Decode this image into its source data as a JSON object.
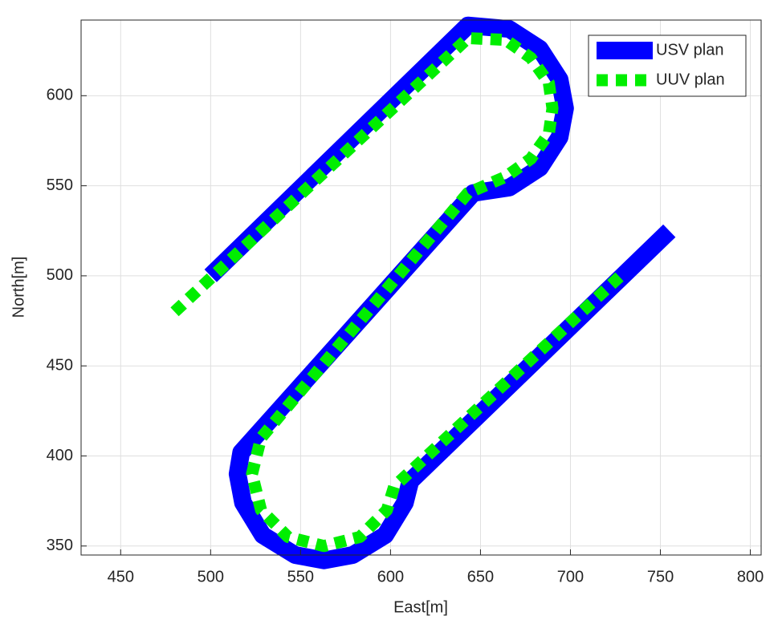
{
  "chart_data": {
    "type": "line",
    "xlabel": "East[m]",
    "ylabel": "North[m]",
    "xlim": [
      428,
      806
    ],
    "ylim": [
      345,
      642
    ],
    "xticks": [
      450,
      500,
      550,
      600,
      650,
      700,
      750,
      800
    ],
    "yticks": [
      350,
      400,
      450,
      500,
      550,
      600
    ],
    "grid": true,
    "legend": "northeast",
    "series": [
      {
        "name": "USV plan",
        "color": "#0000ff",
        "style": "solid",
        "x": [
          500,
          643,
          666,
          683,
          694,
          697,
          694,
          683,
          666,
          646,
          517,
          515,
          518,
          529,
          547,
          563,
          579,
          597,
          608,
          611,
          755
        ],
        "values": [
          500,
          639,
          637,
          626,
          609,
          593,
          577,
          560,
          549,
          546,
          402,
          390,
          374,
          356,
          345,
          342,
          345,
          356,
          374,
          386,
          525
        ]
      },
      {
        "name": "UUV plan",
        "color": "#00ee00",
        "style": "dashed",
        "x": [
          480,
          643,
          664,
          678,
          688,
          690,
          688,
          678,
          664,
          643,
          528,
          523,
          528,
          543,
          563,
          583,
          598,
          602,
          730
        ],
        "values": [
          480,
          632,
          631,
          621,
          607,
          593,
          579,
          565,
          555,
          546,
          410,
          390,
          370,
          355,
          350,
          355,
          370,
          383,
          502
        ]
      }
    ]
  }
}
